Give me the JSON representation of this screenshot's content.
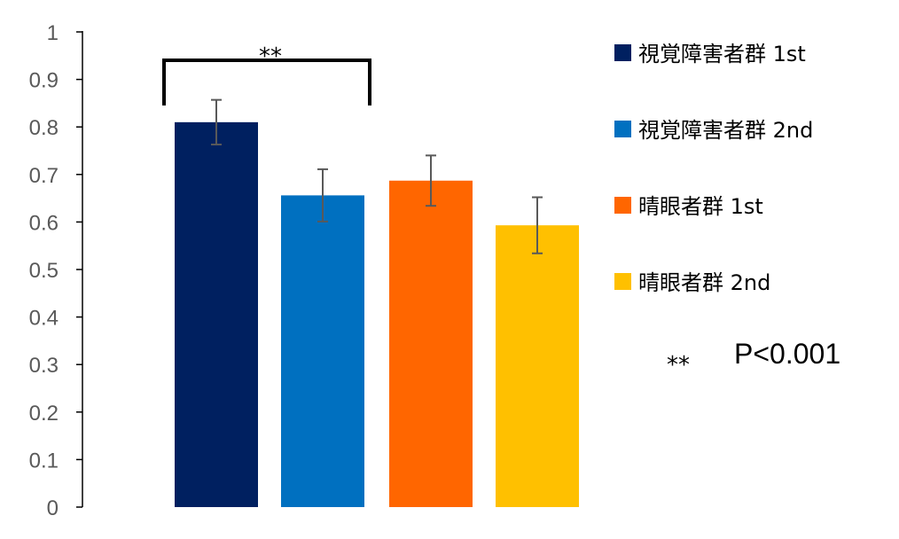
{
  "chart_data": {
    "type": "bar",
    "categories": [
      "視覚障害者群 1st",
      "視覚障害者群 2nd",
      "晴眼者群 1st",
      "晴眼者群 2nd"
    ],
    "values": [
      0.81,
      0.656,
      0.687,
      0.593
    ],
    "errors": [
      0.047,
      0.055,
      0.053,
      0.059
    ],
    "colors": [
      "#002060",
      "#0070C0",
      "#FF6600",
      "#FFC000"
    ],
    "ylim": [
      0,
      1
    ],
    "yticks": [
      "1",
      "0.9",
      "0.8",
      "0.7",
      "0.6",
      "0.5",
      "0.4",
      "0.3",
      "0.2",
      "0.1",
      "0"
    ],
    "legend": {
      "position": "right",
      "entries": [
        "視覚障害者群 1st",
        "視覚障害者群 2nd",
        "晴眼者群 1st",
        "晴眼者群 2nd"
      ]
    },
    "significance": {
      "label": "**",
      "between": [
        "視覚障害者群 1st",
        "視覚障害者群 2nd"
      ]
    },
    "note": {
      "marker": "**",
      "text": "P<0.001"
    },
    "grid": false
  }
}
